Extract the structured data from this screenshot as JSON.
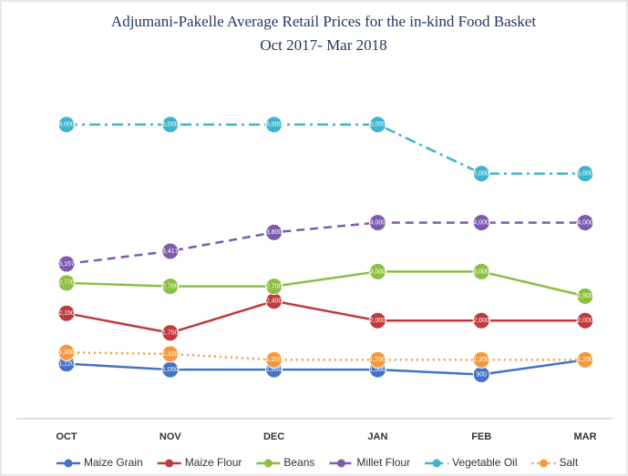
{
  "chart_data": {
    "type": "line",
    "title": "Adjumani-Pakelle Average Retail Prices for the in-kind Food Basket",
    "subtitle": "Oct 2017- Mar 2018",
    "categories": [
      "OCT",
      "NOV",
      "DEC",
      "JAN",
      "FEB",
      "MAR"
    ],
    "ylim": [
      0,
      7000
    ],
    "legend": "bottom",
    "series": [
      {
        "name": "Maize Grain",
        "color": "#4472c4",
        "dash": "solid",
        "values": [
          1120,
          1000,
          1000,
          1000,
          900,
          1200
        ],
        "value_labels": [
          "1,120",
          "1,000",
          "1,000",
          "1,000",
          "900",
          "1,200"
        ]
      },
      {
        "name": "Maize Flour",
        "color": "#c0393b",
        "dash": "solid",
        "values": [
          2150,
          1750,
          2400,
          2000,
          2000,
          2000
        ],
        "value_labels": [
          "2,150",
          "1,750",
          "2,400",
          "2,000",
          "2,000",
          "2,000"
        ]
      },
      {
        "name": "Beans",
        "color": "#8cbf44",
        "dash": "solid",
        "values": [
          2770,
          2700,
          2700,
          3000,
          3000,
          2500
        ],
        "value_labels": [
          "2,770",
          "2,700",
          "2,700",
          "3,000",
          "3,000",
          "2,500"
        ]
      },
      {
        "name": "Millet Flour",
        "color": "#7f5bab",
        "dash": "dashed",
        "values": [
          3157,
          3417,
          3800,
          4000,
          4000,
          4000
        ],
        "value_labels": [
          "3,157",
          "3,417",
          "3,800",
          "4,000",
          "4,000",
          "4,000"
        ]
      },
      {
        "name": "Vegetable Oil",
        "color": "#3fb4cc",
        "dash": "dashdot",
        "values": [
          6000,
          6000,
          6000,
          6000,
          5000,
          5000
        ],
        "value_labels": [
          "6,000",
          "6,000",
          "6,000",
          "6,000",
          "5,000",
          "5,000"
        ]
      },
      {
        "name": "Salt",
        "color": "#f39a3e",
        "dash": "dotted",
        "values": [
          1350,
          1320,
          1200,
          1200,
          1200,
          1200
        ],
        "value_labels": [
          "1,350",
          "1,320",
          "1,200",
          "1,200",
          "1,200",
          "1,200"
        ]
      }
    ]
  }
}
